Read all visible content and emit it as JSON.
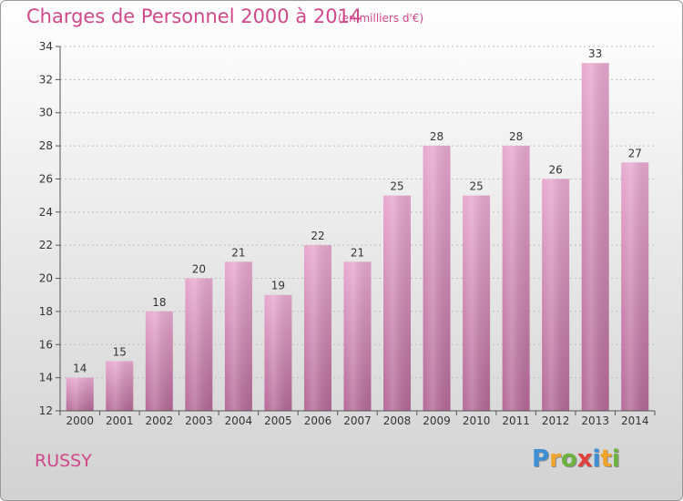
{
  "title": "Charges de Personnel 2000 à 2014",
  "subtitle": "(en milliers d'€)",
  "commune": "RUSSY",
  "logo": {
    "text": "Proxiti",
    "letters": [
      {
        "ch": "P",
        "color": "#3d8fd6"
      },
      {
        "ch": "r",
        "color": "#f0a52a"
      },
      {
        "ch": "o",
        "color": "#6cb33f"
      },
      {
        "ch": "x",
        "color": "#e2403a"
      },
      {
        "ch": "i",
        "color": "#3d8fd6"
      },
      {
        "ch": "t",
        "color": "#f0a52a"
      },
      {
        "ch": "i",
        "color": "#6cb33f"
      }
    ]
  },
  "colors": {
    "title": "#d0478a",
    "bar_top": "#e8a9cf",
    "bar_bottom": "#b56a98",
    "axis": "#555555",
    "grid": "#bdbdbd"
  },
  "chart_data": {
    "type": "bar",
    "categories": [
      "2000",
      "2001",
      "2002",
      "2003",
      "2004",
      "2005",
      "2006",
      "2007",
      "2008",
      "2009",
      "2010",
      "2011",
      "2012",
      "2013",
      "2014"
    ],
    "values": [
      14,
      15,
      18,
      20,
      21,
      19,
      22,
      21,
      25,
      28,
      25,
      28,
      26,
      33,
      27
    ],
    "data_labels": [
      "14",
      "15",
      "18",
      "20",
      "21",
      "19",
      "22",
      "21",
      "25",
      "28",
      "25",
      "28",
      "26",
      "33",
      "27"
    ],
    "ylim": [
      12,
      34
    ],
    "yticks": [
      12,
      14,
      16,
      18,
      20,
      22,
      24,
      26,
      28,
      30,
      32,
      34
    ],
    "ytick_labels": [
      "12",
      "14",
      "16",
      "18",
      "20",
      "22",
      "24",
      "26",
      "28",
      "30",
      "32",
      "34"
    ],
    "grid": true
  }
}
